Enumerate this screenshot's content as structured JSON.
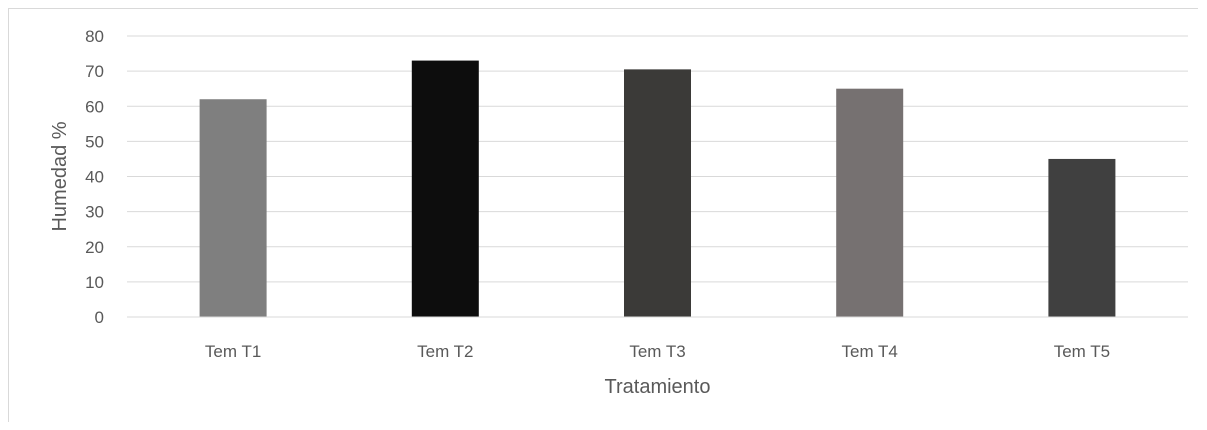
{
  "chart_data": {
    "type": "bar",
    "categories": [
      "Tem T1",
      "Tem T2",
      "Tem T3",
      "Tem T4",
      "Tem T5"
    ],
    "values": [
      62,
      73,
      70.5,
      65,
      45
    ],
    "colors": [
      "#7f7f7f",
      "#0d0d0d",
      "#3b3a38",
      "#767171",
      "#404040"
    ],
    "xlabel": "Tratamiento",
    "ylabel": "Humedad %",
    "ylim": [
      0,
      80
    ],
    "yticks": [
      0,
      10,
      20,
      30,
      40,
      50,
      60,
      70,
      80
    ],
    "grid": true,
    "legend": "none"
  }
}
